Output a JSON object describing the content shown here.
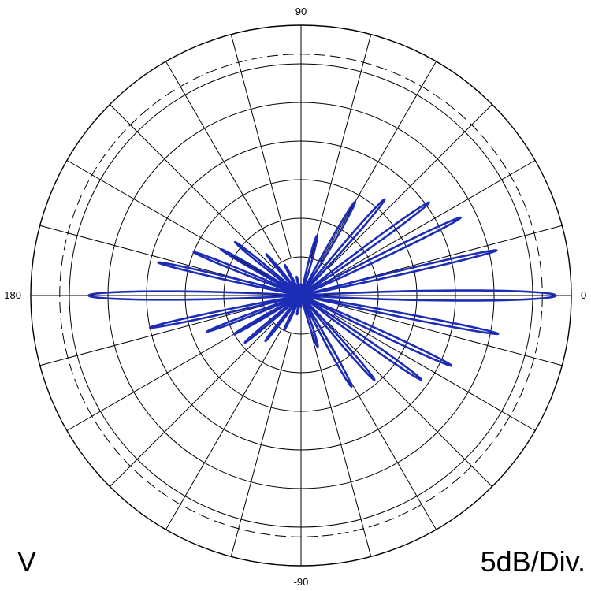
{
  "chart_data": {
    "type": "polar",
    "angle_unit": "degrees",
    "angle_direction": "counterclockwise",
    "angle_zero": "right",
    "angle_tick_labels": [
      {
        "angle": 0,
        "label": "0"
      },
      {
        "angle": 90,
        "label": "90"
      },
      {
        "angle": 180,
        "label": "180"
      },
      {
        "angle": 270,
        "label": "-90"
      }
    ],
    "spoke_step_deg": 15,
    "rings": 7,
    "reference_ring_level": 6.25,
    "polarization_label": "V",
    "scale_label": "5dB/Div.",
    "grid": true,
    "colors": {
      "pattern": "#1c2cb4",
      "grid": "#000000"
    },
    "series": [
      {
        "lobes": [
          {
            "angle": 0,
            "level": 6.6,
            "width": 3.4
          },
          {
            "angle": 180,
            "level": 5.5,
            "width": 3.4
          },
          {
            "angle": 13,
            "level": 5.2,
            "width": 1.8
          },
          {
            "angle": -11,
            "level": 5.2,
            "width": 1.8
          },
          {
            "angle": 26,
            "level": 4.6,
            "width": 2.2
          },
          {
            "angle": -25,
            "level": 4.3,
            "width": 2.2
          },
          {
            "angle": 36,
            "level": 4.1,
            "width": 2.5
          },
          {
            "angle": -35,
            "level": 3.8,
            "width": 2.5
          },
          {
            "angle": 49,
            "level": 3.3,
            "width": 2.7
          },
          {
            "angle": -49,
            "level": 2.9,
            "width": 2.7
          },
          {
            "angle": 60,
            "level": 2.8,
            "width": 3.0
          },
          {
            "angle": -61,
            "level": 2.7,
            "width": 3.0
          },
          {
            "angle": 75,
            "level": 1.6,
            "width": 4.0
          },
          {
            "angle": -72,
            "level": 1.4,
            "width": 4.0
          },
          {
            "angle": 167,
            "level": 3.8,
            "width": 2.0
          },
          {
            "angle": 192,
            "level": 4.0,
            "width": 2.0
          },
          {
            "angle": 158,
            "level": 3.0,
            "width": 2.2
          },
          {
            "angle": 201,
            "level": 2.6,
            "width": 2.2
          },
          {
            "angle": 150,
            "level": 2.4,
            "width": 2.4
          },
          {
            "angle": 210,
            "level": 2.0,
            "width": 2.4
          },
          {
            "angle": 141,
            "level": 2.2,
            "width": 2.5
          },
          {
            "angle": 220,
            "level": 1.9,
            "width": 2.5
          },
          {
            "angle": 130,
            "level": 1.4,
            "width": 2.8
          },
          {
            "angle": 232,
            "level": 1.5,
            "width": 2.8
          },
          {
            "angle": 118,
            "level": 0.9,
            "width": 3.2
          },
          {
            "angle": 244,
            "level": 1.0,
            "width": 3.2
          },
          {
            "angle": 103,
            "level": 0.5,
            "width": 4.0
          },
          {
            "angle": 258,
            "level": 0.5,
            "width": 4.0
          },
          {
            "angle": 90,
            "level": 0.3,
            "width": 5.0
          },
          {
            "angle": 270,
            "level": 0.3,
            "width": 5.0
          }
        ]
      }
    ]
  }
}
